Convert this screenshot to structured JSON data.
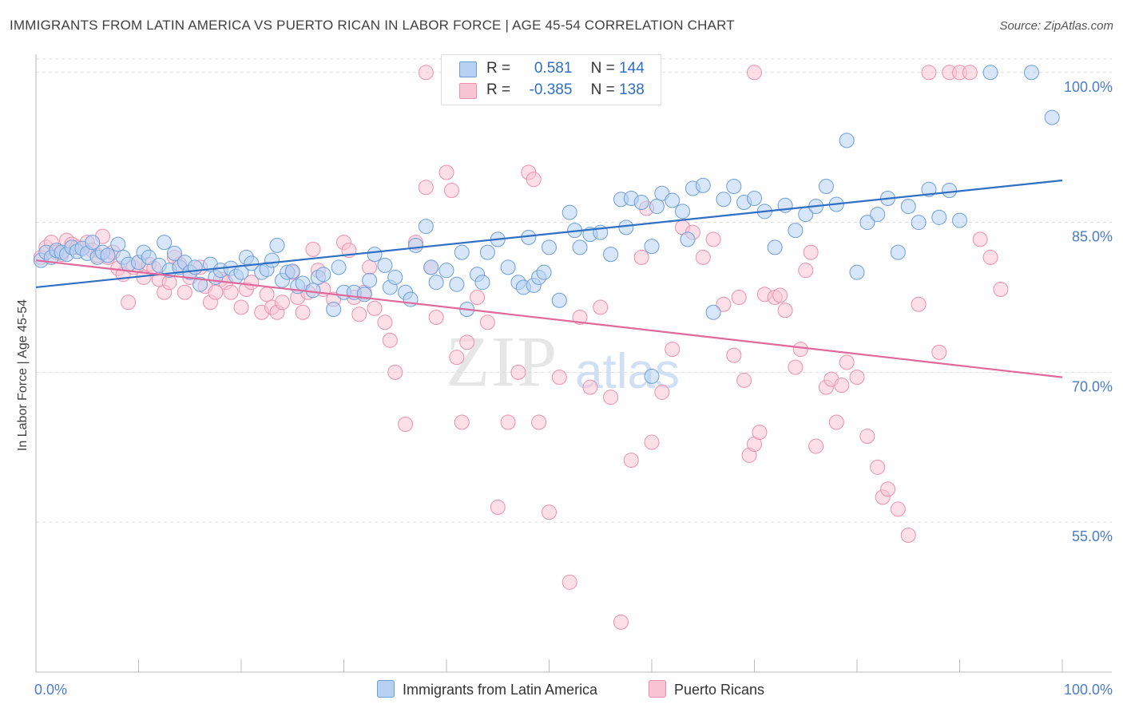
{
  "header": {
    "title": "IMMIGRANTS FROM LATIN AMERICA VS PUERTO RICAN IN LABOR FORCE | AGE 45-54 CORRELATION CHART",
    "source": "Source: ZipAtlas.com"
  },
  "watermark": {
    "zip": "ZIP",
    "atlas": "atlas"
  },
  "legend": {
    "series1": {
      "r_label": "R =",
      "r_value": "0.581",
      "n_label": "N =",
      "n_value": "144"
    },
    "series2": {
      "r_label": "R =",
      "r_value": "-0.385",
      "n_label": "N =",
      "n_value": "138"
    }
  },
  "colors": {
    "blue_fill": "#b7d1f3",
    "blue_stroke": "#6b9edb",
    "blue_line": "#2f6fc4",
    "pink_fill": "#f9c5d4",
    "pink_stroke": "#ee8fad",
    "pink_line": "#e0689a",
    "axis_label": "#4a7cc7"
  },
  "chart_data": {
    "type": "scatter",
    "title": "IMMIGRANTS FROM LATIN AMERICA VS PUERTO RICAN IN LABOR FORCE | AGE 45-54 CORRELATION CHART",
    "xlabel": "",
    "ylabel": "In Labor Force | Age 45-54",
    "xlim": [
      0,
      100
    ],
    "ylim": [
      40,
      101.5
    ],
    "x_tick_labels": [
      "0.0%",
      "100.0%"
    ],
    "y_ticks": [
      55,
      70,
      85,
      100
    ],
    "y_tick_labels": [
      "55.0%",
      "70.0%",
      "85.0%",
      "100.0%"
    ],
    "legend_position": "top-center",
    "series": [
      {
        "name": "Immigrants from Latin America",
        "color": "blue",
        "trend": {
          "x": [
            0,
            100
          ],
          "y": [
            78.5,
            89.2
          ]
        },
        "points": [
          [
            0.5,
            81.2
          ],
          [
            1,
            82
          ],
          [
            1.5,
            81.5
          ],
          [
            2,
            82.2
          ],
          [
            2.5,
            82
          ],
          [
            3,
            81.8
          ],
          [
            3.5,
            82.5
          ],
          [
            4,
            82.1
          ],
          [
            4.5,
            82.4
          ],
          [
            5,
            81.9
          ],
          [
            5.5,
            83
          ],
          [
            6,
            81.5
          ],
          [
            6.5,
            82
          ],
          [
            7,
            81.7
          ],
          [
            8,
            82.8
          ],
          [
            8.5,
            81.5
          ],
          [
            9,
            80.8
          ],
          [
            10,
            81
          ],
          [
            10.5,
            82
          ],
          [
            11,
            81.5
          ],
          [
            12,
            80.7
          ],
          [
            12.5,
            83
          ],
          [
            13,
            80.2
          ],
          [
            13.5,
            81.9
          ],
          [
            14,
            80.5
          ],
          [
            14.5,
            81
          ],
          [
            15,
            80
          ],
          [
            15.5,
            80.5
          ],
          [
            16,
            78.8
          ],
          [
            17,
            80.8
          ],
          [
            17.5,
            79.5
          ],
          [
            18,
            80.2
          ],
          [
            19,
            80.4
          ],
          [
            19.5,
            79.6
          ],
          [
            20,
            80
          ],
          [
            20.5,
            81.5
          ],
          [
            21,
            80.9
          ],
          [
            22,
            80
          ],
          [
            22.5,
            80.3
          ],
          [
            23,
            81.2
          ],
          [
            23.5,
            82.7
          ],
          [
            24,
            79.2
          ],
          [
            24.5,
            80
          ],
          [
            25,
            80.1
          ],
          [
            25.5,
            78.6
          ],
          [
            26,
            78.9
          ],
          [
            27,
            78.2
          ],
          [
            27.5,
            79.5
          ],
          [
            28,
            79.8
          ],
          [
            29,
            76.3
          ],
          [
            29.5,
            80.5
          ],
          [
            30,
            78
          ],
          [
            31,
            78
          ],
          [
            32,
            77.8
          ],
          [
            32.5,
            79.2
          ],
          [
            33,
            81.8
          ],
          [
            34,
            80.7
          ],
          [
            34.5,
            78.5
          ],
          [
            35,
            79.5
          ],
          [
            36,
            78
          ],
          [
            36.5,
            77.3
          ],
          [
            37,
            82.7
          ],
          [
            38,
            84.6
          ],
          [
            38.5,
            80.5
          ],
          [
            39,
            79
          ],
          [
            40,
            80.2
          ],
          [
            41,
            78.8
          ],
          [
            41.5,
            82
          ],
          [
            42,
            76.3
          ],
          [
            43,
            79.8
          ],
          [
            43.5,
            79
          ],
          [
            44,
            82
          ],
          [
            45,
            83.3
          ],
          [
            46,
            80.5
          ],
          [
            47,
            79
          ],
          [
            47.5,
            78.5
          ],
          [
            48,
            83.5
          ],
          [
            48.5,
            78.7
          ],
          [
            49,
            79.5
          ],
          [
            49.5,
            80
          ],
          [
            50,
            82.5
          ],
          [
            51,
            77.2
          ],
          [
            52,
            86
          ],
          [
            52.5,
            84.2
          ],
          [
            53,
            82.5
          ],
          [
            54,
            83.8
          ],
          [
            55,
            84
          ],
          [
            56,
            81.8
          ],
          [
            57,
            87.3
          ],
          [
            57.5,
            84.5
          ],
          [
            58,
            87.4
          ],
          [
            59,
            87
          ],
          [
            60,
            82.6
          ],
          [
            60.5,
            86.6
          ],
          [
            61,
            87.9
          ],
          [
            62,
            87.2
          ],
          [
            63,
            86.1
          ],
          [
            63.5,
            83.3
          ],
          [
            64,
            88.4
          ],
          [
            65,
            88.7
          ],
          [
            66,
            76
          ],
          [
            67,
            87.3
          ],
          [
            68,
            88.6
          ],
          [
            69,
            87
          ],
          [
            70,
            87.4
          ],
          [
            71,
            86.1
          ],
          [
            72,
            82.5
          ],
          [
            73,
            86.7
          ],
          [
            74,
            84.2
          ],
          [
            75,
            85.8
          ],
          [
            76,
            86.6
          ],
          [
            77,
            88.6
          ],
          [
            78,
            86.8
          ],
          [
            79,
            93.2
          ],
          [
            80,
            80
          ],
          [
            81,
            85
          ],
          [
            82,
            85.8
          ],
          [
            83,
            87.4
          ],
          [
            84,
            82
          ],
          [
            85,
            86.6
          ],
          [
            86,
            85
          ],
          [
            87,
            88.3
          ],
          [
            88,
            85.5
          ],
          [
            89,
            88.2
          ],
          [
            90,
            85.2
          ],
          [
            93,
            100
          ],
          [
            99,
            95.5
          ],
          [
            97,
            100
          ],
          [
            60,
            69.6
          ]
        ]
      },
      {
        "name": "Puerto Ricans",
        "color": "pink",
        "trend": {
          "x": [
            0,
            100
          ],
          "y": [
            81.2,
            69.5
          ]
        },
        "points": [
          [
            0.5,
            81.5
          ],
          [
            1,
            82.5
          ],
          [
            1.5,
            83
          ],
          [
            2,
            82
          ],
          [
            2.5,
            81.8
          ],
          [
            3,
            83.2
          ],
          [
            3.5,
            82.8
          ],
          [
            4,
            82.5
          ],
          [
            5,
            83
          ],
          [
            5.5,
            82.2
          ],
          [
            6,
            81.7
          ],
          [
            6.5,
            83.6
          ],
          [
            7,
            81.5
          ],
          [
            7.5,
            82
          ],
          [
            8,
            80.4
          ],
          [
            8.5,
            79.8
          ],
          [
            9,
            77
          ],
          [
            9.5,
            80.5
          ],
          [
            10,
            81
          ],
          [
            10.5,
            79.5
          ],
          [
            11,
            80.8
          ],
          [
            11.5,
            80.4
          ],
          [
            12,
            79.3
          ],
          [
            12.5,
            78
          ],
          [
            13,
            79
          ],
          [
            13.5,
            81.5
          ],
          [
            14,
            80.8
          ],
          [
            14.5,
            78
          ],
          [
            15,
            79.5
          ],
          [
            16,
            80.5
          ],
          [
            16.5,
            78.6
          ],
          [
            17,
            77
          ],
          [
            17.5,
            78
          ],
          [
            18,
            79.3
          ],
          [
            18.5,
            79
          ],
          [
            19,
            78
          ],
          [
            20,
            76.5
          ],
          [
            20.5,
            78.3
          ],
          [
            21,
            79
          ],
          [
            22,
            76
          ],
          [
            22.5,
            77.8
          ],
          [
            23,
            76.5
          ],
          [
            23.5,
            76
          ],
          [
            24,
            77
          ],
          [
            25,
            80
          ],
          [
            25.5,
            77.5
          ],
          [
            26,
            76
          ],
          [
            26.5,
            78
          ],
          [
            27,
            82.3
          ],
          [
            27.5,
            80.2
          ],
          [
            28,
            78.3
          ],
          [
            29,
            77.3
          ],
          [
            30,
            83
          ],
          [
            30.5,
            82.2
          ],
          [
            31,
            77.5
          ],
          [
            31.5,
            75.8
          ],
          [
            32,
            78
          ],
          [
            32.5,
            80.5
          ],
          [
            33,
            76.4
          ],
          [
            34,
            75
          ],
          [
            34.5,
            73.2
          ],
          [
            35,
            70
          ],
          [
            36,
            64.8
          ],
          [
            37,
            83
          ],
          [
            38,
            88.5
          ],
          [
            38.5,
            80.5
          ],
          [
            39,
            75.5
          ],
          [
            40,
            90
          ],
          [
            40.5,
            88.2
          ],
          [
            41,
            71.5
          ],
          [
            41.5,
            65
          ],
          [
            42,
            73
          ],
          [
            43,
            77.5
          ],
          [
            44,
            75
          ],
          [
            45,
            56.5
          ],
          [
            46,
            65
          ],
          [
            47,
            70
          ],
          [
            48,
            90
          ],
          [
            48.5,
            89.3
          ],
          [
            49,
            65
          ],
          [
            50,
            56
          ],
          [
            51,
            69.5
          ],
          [
            52,
            49
          ],
          [
            53,
            75.5
          ],
          [
            54,
            68.5
          ],
          [
            55,
            76.5
          ],
          [
            56,
            67.5
          ],
          [
            57,
            45
          ],
          [
            58,
            61.2
          ],
          [
            59,
            81.5
          ],
          [
            59.5,
            86.4
          ],
          [
            60,
            63
          ],
          [
            61,
            68
          ],
          [
            62,
            72.3
          ],
          [
            63,
            84.5
          ],
          [
            64,
            84
          ],
          [
            65,
            81.5
          ],
          [
            66,
            83.3
          ],
          [
            67,
            76.8
          ],
          [
            68,
            71.7
          ],
          [
            68.5,
            77.5
          ],
          [
            69,
            69.2
          ],
          [
            69.5,
            61.7
          ],
          [
            70,
            62.8
          ],
          [
            70.5,
            64
          ],
          [
            71,
            77.8
          ],
          [
            72,
            77.5
          ],
          [
            72.5,
            77.7
          ],
          [
            73,
            76.2
          ],
          [
            74,
            70.5
          ],
          [
            74.5,
            72.3
          ],
          [
            75,
            80.2
          ],
          [
            75.5,
            82
          ],
          [
            76,
            62.6
          ],
          [
            77,
            68.5
          ],
          [
            77.5,
            69.3
          ],
          [
            78,
            65
          ],
          [
            78.5,
            68.7
          ],
          [
            79,
            71
          ],
          [
            80,
            69.5
          ],
          [
            81,
            63.6
          ],
          [
            82,
            60.5
          ],
          [
            82.5,
            57.5
          ],
          [
            83,
            58.3
          ],
          [
            84,
            56.3
          ],
          [
            85,
            53.7
          ],
          [
            86,
            76.8
          ],
          [
            87,
            100
          ],
          [
            88,
            72
          ],
          [
            89,
            100
          ],
          [
            90,
            100
          ],
          [
            91,
            100
          ],
          [
            92,
            83.3
          ],
          [
            93,
            81.5
          ],
          [
            94,
            78.3
          ],
          [
            38,
            100
          ],
          [
            70,
            100
          ]
        ]
      }
    ]
  },
  "bottom_legend": {
    "series1": "Immigrants from Latin America",
    "series2": "Puerto Ricans"
  }
}
